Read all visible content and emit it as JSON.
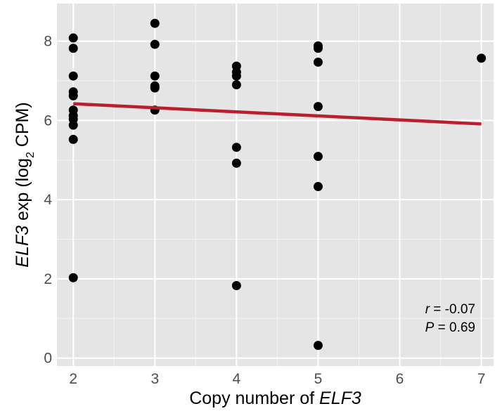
{
  "chart_data": {
    "type": "scatter",
    "xlim": [
      1.8,
      7.15
    ],
    "ylim": [
      -0.2,
      8.95
    ],
    "x_ticks": [
      2,
      3,
      4,
      5,
      6,
      7
    ],
    "y_ticks": [
      0,
      2,
      4,
      6,
      8
    ],
    "x_tick_labels": [
      "2",
      "3",
      "4",
      "5",
      "6",
      "7"
    ],
    "y_tick_labels": [
      "0",
      "2",
      "4",
      "6",
      "8"
    ],
    "xlabel": {
      "prefix": "Copy number of ",
      "gene": "ELF3"
    },
    "ylabel": {
      "gene": "ELF3",
      "text1": " exp (log",
      "sub": "2",
      "text2": " CPM)"
    },
    "grid": true,
    "background": "#e5e5e5",
    "point_color": "#000000",
    "line_color": "#b8202e",
    "points": [
      {
        "x": 2,
        "y": 8.08
      },
      {
        "x": 2,
        "y": 7.82
      },
      {
        "x": 2,
        "y": 7.12
      },
      {
        "x": 2,
        "y": 6.72
      },
      {
        "x": 2,
        "y": 6.62
      },
      {
        "x": 2,
        "y": 6.26
      },
      {
        "x": 2,
        "y": 6.12
      },
      {
        "x": 2,
        "y": 6.03
      },
      {
        "x": 2,
        "y": 5.88
      },
      {
        "x": 2,
        "y": 5.52
      },
      {
        "x": 2,
        "y": 2.03
      },
      {
        "x": 3,
        "y": 8.45
      },
      {
        "x": 3,
        "y": 7.92
      },
      {
        "x": 3,
        "y": 7.12
      },
      {
        "x": 3,
        "y": 6.87
      },
      {
        "x": 3,
        "y": 6.82
      },
      {
        "x": 3,
        "y": 6.26
      },
      {
        "x": 4,
        "y": 7.37
      },
      {
        "x": 4,
        "y": 7.22
      },
      {
        "x": 4,
        "y": 7.12
      },
      {
        "x": 4,
        "y": 6.9
      },
      {
        "x": 4,
        "y": 5.32
      },
      {
        "x": 4,
        "y": 4.92
      },
      {
        "x": 4,
        "y": 1.83
      },
      {
        "x": 5,
        "y": 7.88
      },
      {
        "x": 5,
        "y": 7.82
      },
      {
        "x": 5,
        "y": 7.47
      },
      {
        "x": 5,
        "y": 6.35
      },
      {
        "x": 5,
        "y": 5.09
      },
      {
        "x": 5,
        "y": 4.33
      },
      {
        "x": 5,
        "y": 0.32
      },
      {
        "x": 7,
        "y": 7.57
      }
    ],
    "fit_line": {
      "x": [
        2,
        7
      ],
      "y": [
        6.42,
        5.91
      ]
    },
    "annotation": {
      "r_label": "r",
      "r_value": " = -0.07",
      "p_label": "P",
      "p_value": " = 0.69"
    }
  }
}
